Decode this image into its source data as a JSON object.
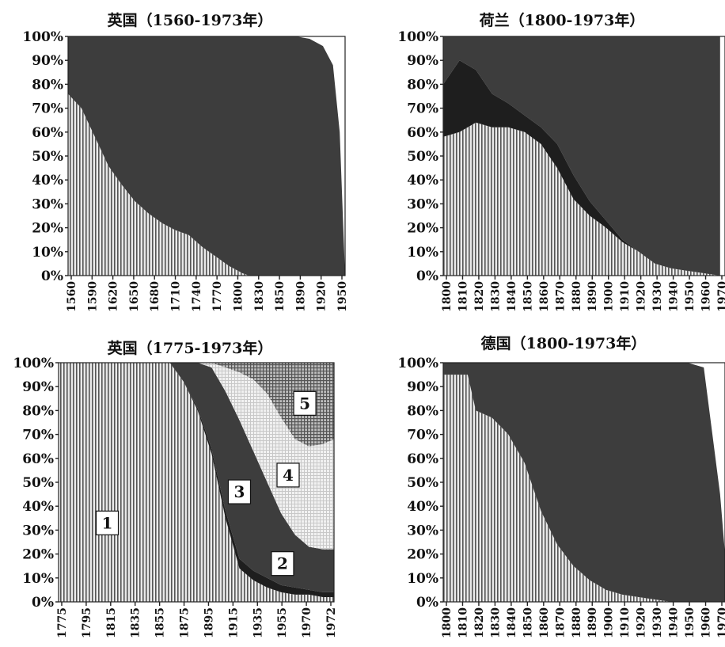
{
  "colors": {
    "light_fill": "#e9e9e9",
    "stripe": "#555555",
    "dark_fill": "#3d3d3d",
    "darker_fill": "#1e1e1e",
    "mid_fill": "#8c8c8c",
    "pale_fill": "#f3f3f3",
    "grid_fill": "#a6a6a6"
  },
  "chart_data": [
    {
      "type": "area",
      "title": "英国（1560-1973年）",
      "stacked": true,
      "percent": true,
      "ylim": [
        0,
        100
      ],
      "yticks": [
        "0%",
        "10%",
        "20%",
        "30%",
        "40%",
        "50%",
        "60%",
        "70%",
        "80%",
        "90%",
        "100%"
      ],
      "xlim": [
        1560,
        1973
      ],
      "xticks": [
        "1560",
        "1590",
        "1620",
        "1650",
        "1680",
        "1710",
        "1740",
        "1770",
        "1800",
        "1830",
        "1850",
        "1890",
        "1920",
        "1950"
      ],
      "x": [
        1560,
        1580,
        1600,
        1620,
        1640,
        1660,
        1680,
        1700,
        1720,
        1740,
        1760,
        1780,
        1800,
        1820,
        1830,
        1840,
        1860,
        1880,
        1900,
        1920,
        1940,
        1955,
        1965,
        1973
      ],
      "series": [
        {
          "values": [
            76,
            70,
            58,
            46,
            38,
            31,
            26,
            22,
            19,
            17,
            12,
            8,
            4,
            1,
            0,
            0,
            0,
            0,
            0,
            0,
            0,
            0,
            0,
            0
          ]
        },
        {
          "values": [
            24,
            30,
            42,
            54,
            62,
            69,
            74,
            78,
            81,
            83,
            88,
            92,
            96,
            99,
            100,
            100,
            100,
            100,
            100,
            99,
            96,
            88,
            60,
            0
          ]
        }
      ]
    },
    {
      "type": "area",
      "title": "荷兰（1800-1973年）",
      "stacked": true,
      "percent": true,
      "ylim": [
        0,
        100
      ],
      "yticks": [
        "0%",
        "10%",
        "20%",
        "30%",
        "40%",
        "50%",
        "60%",
        "70%",
        "80%",
        "90%",
        "100%"
      ],
      "xlim": [
        1800,
        1973
      ],
      "xticks": [
        "1800",
        "1810",
        "1820",
        "1830",
        "1840",
        "1850",
        "1860",
        "1870",
        "1880",
        "1890",
        "1900",
        "1910",
        "1920",
        "1930",
        "1940",
        "1950",
        "1960",
        "1970"
      ],
      "x": [
        1800,
        1810,
        1820,
        1830,
        1840,
        1850,
        1860,
        1870,
        1880,
        1890,
        1900,
        1910,
        1920,
        1930,
        1940,
        1950,
        1960,
        1970
      ],
      "series": [
        {
          "values": [
            58,
            60,
            64,
            62,
            62,
            60,
            55,
            45,
            32,
            25,
            20,
            14,
            10,
            5,
            3,
            2,
            1,
            0
          ]
        },
        {
          "values": [
            22,
            30,
            22,
            14,
            10,
            7,
            7,
            10,
            10,
            6,
            3,
            1,
            0,
            0,
            0,
            0,
            0,
            0
          ]
        },
        {
          "values": [
            20,
            10,
            14,
            24,
            28,
            33,
            38,
            45,
            58,
            69,
            77,
            85,
            90,
            95,
            97,
            98,
            99,
            100
          ]
        }
      ]
    },
    {
      "type": "area",
      "title": "英国（1775-1973年）",
      "stacked": true,
      "percent": true,
      "ylim": [
        0,
        100
      ],
      "yticks": [
        "0%",
        "10%",
        "20%",
        "30%",
        "40%",
        "50%",
        "60%",
        "70%",
        "80%",
        "90%",
        "100%"
      ],
      "xlim": [
        1775,
        1973
      ],
      "xticks": [
        "1775",
        "1795",
        "1815",
        "1835",
        "1855",
        "1875",
        "1895",
        "1915",
        "1935",
        "1955",
        "1970",
        "1972"
      ],
      "x": [
        1775,
        1835,
        1845,
        1855,
        1865,
        1875,
        1885,
        1895,
        1905,
        1915,
        1925,
        1935,
        1945,
        1955,
        1965,
        1973
      ],
      "series": [
        {
          "name": "1",
          "values": [
            100,
            100,
            100,
            100,
            92,
            80,
            62,
            35,
            14,
            9,
            6,
            4,
            3,
            3,
            2,
            2
          ]
        },
        {
          "name": "2",
          "values": [
            0,
            0,
            0,
            0,
            0,
            1,
            2,
            3,
            4,
            4,
            4,
            3,
            3,
            2,
            2,
            2
          ]
        },
        {
          "name": "3",
          "values": [
            0,
            0,
            0,
            0,
            8,
            19,
            34,
            50,
            58,
            50,
            40,
            30,
            22,
            18,
            18,
            18
          ]
        },
        {
          "name": "4",
          "values": [
            0,
            0,
            0,
            0,
            0,
            0,
            2,
            10,
            20,
            30,
            37,
            40,
            40,
            42,
            44,
            46
          ]
        },
        {
          "name": "5",
          "values": [
            0,
            0,
            0,
            0,
            0,
            0,
            0,
            2,
            4,
            7,
            13,
            23,
            32,
            35,
            34,
            32
          ]
        }
      ],
      "box_labels": [
        "1",
        "2",
        "3",
        "4",
        "5"
      ]
    },
    {
      "type": "area",
      "title": "德国（1800-1973年）",
      "stacked": true,
      "percent": true,
      "ylim": [
        0,
        100
      ],
      "yticks": [
        "0%",
        "10%",
        "20%",
        "30%",
        "40%",
        "50%",
        "60%",
        "70%",
        "80%",
        "90%",
        "100%"
      ],
      "xlim": [
        1800,
        1973
      ],
      "xticks": [
        "1800",
        "1810",
        "1820",
        "1830",
        "1840",
        "1850",
        "1860",
        "1870",
        "1880",
        "1890",
        "1900",
        "1910",
        "1920",
        "1930",
        "1940",
        "1950",
        "1960",
        "1970"
      ],
      "x": [
        1800,
        1810,
        1815,
        1820,
        1830,
        1840,
        1850,
        1860,
        1870,
        1880,
        1890,
        1900,
        1910,
        1920,
        1930,
        1940,
        1950,
        1960,
        1970,
        1973
      ],
      "series": [
        {
          "values": [
            95,
            95,
            95,
            80,
            77,
            70,
            58,
            38,
            24,
            15,
            9,
            5,
            3,
            2,
            1,
            0,
            0,
            0,
            0,
            0
          ]
        },
        {
          "values": [
            5,
            5,
            5,
            20,
            23,
            30,
            42,
            62,
            76,
            85,
            91,
            95,
            97,
            98,
            99,
            100,
            100,
            98,
            45,
            20
          ]
        }
      ]
    }
  ]
}
